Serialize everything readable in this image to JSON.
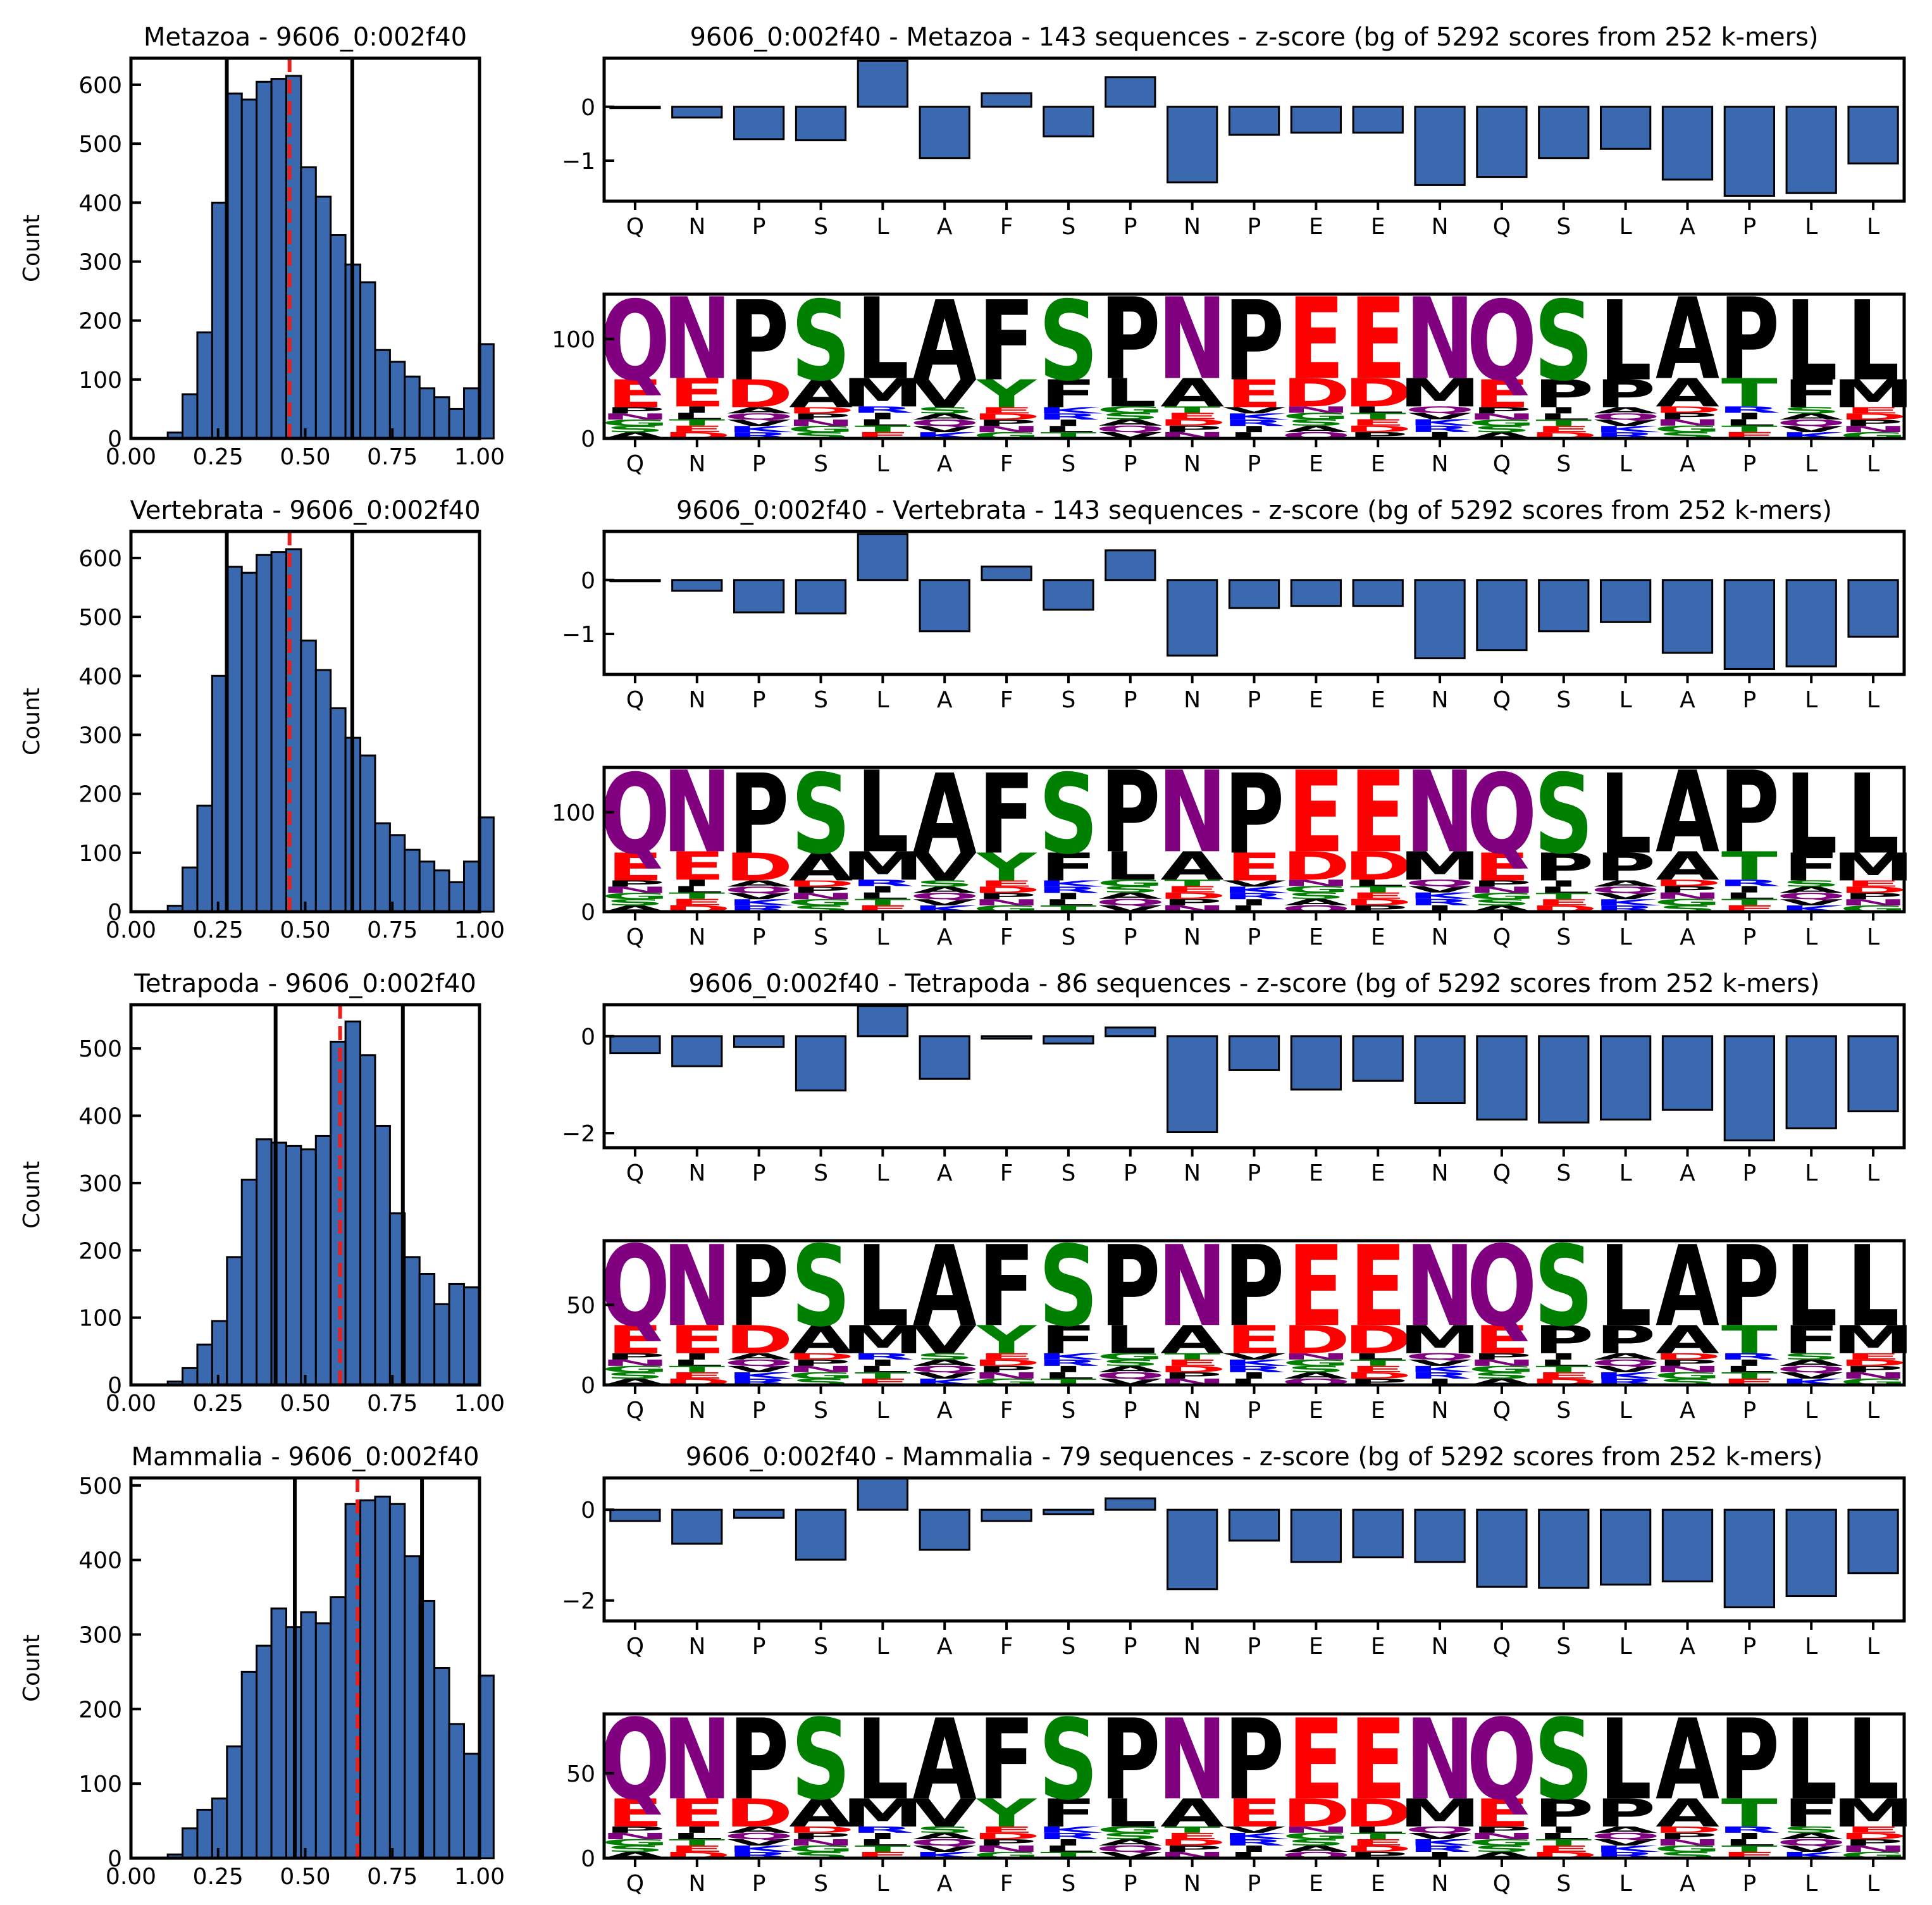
{
  "colors": {
    "bar_fill": "#3b69b0",
    "bar_edge": "#000000",
    "median_line": "#e8201e",
    "bound_line": "#000000",
    "acidic": "#ff0000",
    "basic": "#0000ff",
    "polar": "#008000",
    "amide": "#800080",
    "hydrophobic": "#000000"
  },
  "sequence": [
    "Q",
    "N",
    "P",
    "S",
    "L",
    "A",
    "F",
    "S",
    "P",
    "N",
    "P",
    "E",
    "E",
    "N",
    "Q",
    "S",
    "L",
    "A",
    "P",
    "L",
    "L"
  ],
  "chart_data": [
    {
      "hist": {
        "type": "histogram",
        "title": "Metazoa - 9606_0:002f40",
        "ylabel": "Count",
        "xlim": [
          0,
          1
        ],
        "ylim": [
          0,
          645
        ],
        "xticks": [
          "0.00",
          "0.25",
          "0.50",
          "0.75",
          "1.00"
        ],
        "yticks": [
          0,
          100,
          200,
          300,
          400,
          500,
          600
        ],
        "bin_start": 0.063,
        "bin_width": 0.0425,
        "counts": [
          0,
          10,
          75,
          180,
          400,
          585,
          575,
          605,
          610,
          615,
          460,
          410,
          345,
          295,
          265,
          150,
          130,
          105,
          85,
          70,
          50,
          85,
          160
        ],
        "bound_lines": [
          0.275,
          0.635
        ],
        "median": 0.455
      },
      "bar": {
        "type": "bar",
        "title": "9606_0:002f40 - Metazoa - 143 sequences - z-score (bg of 5292 scores from 252 k-mers)",
        "ylim": [
          -1.75,
          0.9
        ],
        "yticks": [
          {
            "v": 0,
            "t": "0"
          },
          {
            "v": -1,
            "t": "−1"
          }
        ],
        "values": [
          -0.02,
          -0.2,
          -0.6,
          -0.62,
          0.85,
          -0.95,
          0.25,
          -0.55,
          0.55,
          -1.4,
          -0.52,
          -0.48,
          -0.48,
          -1.45,
          -1.3,
          -0.95,
          -0.78,
          -1.35,
          -1.65,
          -1.6,
          -1.05
        ]
      },
      "logo": {
        "type": "sequence_logo",
        "ylim": [
          0,
          145
        ],
        "yticks": [
          0,
          100
        ],
        "heights": [
          140,
          143,
          140,
          140,
          143,
          140,
          140,
          140,
          143,
          143,
          140,
          143,
          143,
          143,
          140,
          140,
          140,
          143,
          143,
          140,
          140
        ]
      }
    },
    {
      "hist": {
        "type": "histogram",
        "title": "Vertebrata - 9606_0:002f40",
        "ylabel": "Count",
        "xlim": [
          0,
          1
        ],
        "ylim": [
          0,
          645
        ],
        "xticks": [
          "0.00",
          "0.25",
          "0.50",
          "0.75",
          "1.00"
        ],
        "yticks": [
          0,
          100,
          200,
          300,
          400,
          500,
          600
        ],
        "bin_start": 0.063,
        "bin_width": 0.0425,
        "counts": [
          0,
          10,
          75,
          180,
          400,
          585,
          575,
          605,
          610,
          615,
          460,
          410,
          345,
          295,
          265,
          150,
          130,
          105,
          85,
          70,
          50,
          85,
          160
        ],
        "bound_lines": [
          0.275,
          0.635
        ],
        "median": 0.455
      },
      "bar": {
        "type": "bar",
        "title": "9606_0:002f40 - Vertebrata - 143 sequences - z-score (bg of 5292 scores from 252 k-mers)",
        "ylim": [
          -1.75,
          0.9
        ],
        "yticks": [
          {
            "v": 0,
            "t": "0"
          },
          {
            "v": -1,
            "t": "−1"
          }
        ],
        "values": [
          -0.02,
          -0.2,
          -0.6,
          -0.62,
          0.85,
          -0.95,
          0.25,
          -0.55,
          0.55,
          -1.4,
          -0.52,
          -0.48,
          -0.48,
          -1.45,
          -1.3,
          -0.95,
          -0.78,
          -1.35,
          -1.65,
          -1.6,
          -1.05
        ]
      },
      "logo": {
        "type": "sequence_logo",
        "ylim": [
          0,
          145
        ],
        "yticks": [
          0,
          100
        ],
        "heights": [
          140,
          143,
          140,
          140,
          143,
          140,
          140,
          140,
          143,
          143,
          140,
          143,
          143,
          143,
          140,
          140,
          140,
          143,
          143,
          140,
          140
        ]
      }
    },
    {
      "hist": {
        "type": "histogram",
        "title": "Tetrapoda - 9606_0:002f40",
        "ylabel": "Count",
        "xlim": [
          0,
          1
        ],
        "ylim": [
          0,
          565
        ],
        "xticks": [
          "0.00",
          "0.25",
          "0.50",
          "0.75",
          "1.00"
        ],
        "yticks": [
          0,
          100,
          200,
          300,
          400,
          500
        ],
        "bin_start": 0.063,
        "bin_width": 0.0425,
        "counts": [
          0,
          5,
          25,
          60,
          95,
          190,
          305,
          365,
          360,
          355,
          350,
          370,
          510,
          540,
          490,
          385,
          255,
          190,
          165,
          120,
          150,
          145
        ],
        "bound_lines": [
          0.415,
          0.78
        ],
        "median": 0.6
      },
      "bar": {
        "type": "bar",
        "title": "9606_0:002f40 - Tetrapoda - 86 sequences - z-score (bg of 5292 scores from 252 k-mers)",
        "ylim": [
          -2.3,
          0.65
        ],
        "yticks": [
          {
            "v": 0,
            "t": "0"
          },
          {
            "v": -2,
            "t": "−2"
          }
        ],
        "values": [
          -0.35,
          -0.62,
          -0.22,
          -1.12,
          0.62,
          -0.88,
          -0.05,
          -0.15,
          0.18,
          -1.98,
          -0.7,
          -1.1,
          -0.92,
          -1.38,
          -1.72,
          -1.78,
          -1.72,
          -1.52,
          -2.15,
          -1.9,
          -1.55
        ]
      },
      "logo": {
        "type": "sequence_logo",
        "ylim": [
          0,
          90
        ],
        "yticks": [
          0,
          50
        ],
        "heights": [
          88,
          88,
          88,
          88,
          88,
          88,
          88,
          88,
          88,
          88,
          88,
          88,
          88,
          88,
          88,
          88,
          88,
          88,
          88,
          88,
          88
        ]
      }
    },
    {
      "hist": {
        "type": "histogram",
        "title": "Mammalia - 9606_0:002f40",
        "ylabel": "Count",
        "xlim": [
          0,
          1
        ],
        "ylim": [
          0,
          510
        ],
        "xticks": [
          "0.00",
          "0.25",
          "0.50",
          "0.75",
          "1.00"
        ],
        "yticks": [
          0,
          100,
          200,
          300,
          400,
          500
        ],
        "bin_start": 0.063,
        "bin_width": 0.0425,
        "counts": [
          0,
          5,
          40,
          65,
          80,
          150,
          250,
          285,
          335,
          310,
          330,
          315,
          350,
          475,
          480,
          485,
          475,
          405,
          345,
          255,
          180,
          140,
          245
        ],
        "bound_lines": [
          0.47,
          0.835
        ],
        "median": 0.65
      },
      "bar": {
        "type": "bar",
        "title": "9606_0:002f40 - Mammalia - 79 sequences - z-score (bg of 5292 scores from 252 k-mers)",
        "ylim": [
          -2.45,
          0.7
        ],
        "yticks": [
          {
            "v": 0,
            "t": "0"
          },
          {
            "v": -2,
            "t": "−2"
          }
        ],
        "values": [
          -0.25,
          -0.75,
          -0.18,
          -1.1,
          0.7,
          -0.88,
          -0.25,
          -0.1,
          0.25,
          -1.75,
          -0.68,
          -1.15,
          -1.05,
          -1.15,
          -1.7,
          -1.72,
          -1.65,
          -1.58,
          -2.15,
          -1.9,
          -1.4
        ]
      },
      "logo": {
        "type": "sequence_logo",
        "ylim": [
          0,
          85
        ],
        "yticks": [
          0,
          50
        ],
        "heights": [
          83,
          83,
          83,
          83,
          83,
          83,
          83,
          83,
          83,
          83,
          83,
          83,
          83,
          83,
          83,
          83,
          83,
          83,
          83,
          83,
          83
        ]
      }
    }
  ]
}
